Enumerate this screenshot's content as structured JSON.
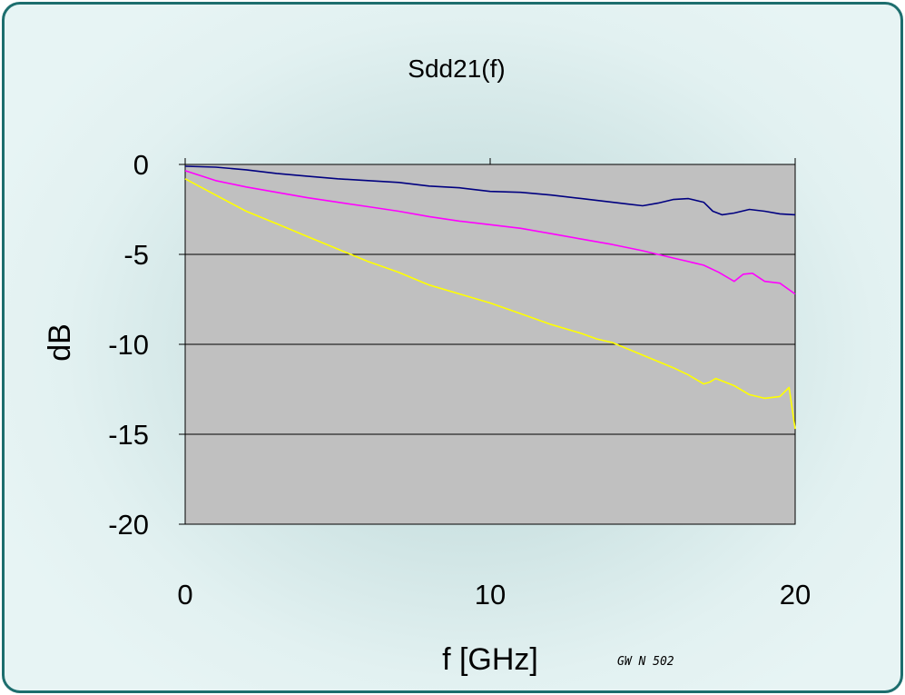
{
  "chart_data": {
    "type": "line",
    "title": "Sdd21(f)",
    "xlabel": "f [GHz]",
    "ylabel": "dB",
    "xlim": [
      0,
      20
    ],
    "ylim": [
      -20,
      0
    ],
    "xticks": [
      "0",
      "10",
      "20"
    ],
    "yticks": [
      "0",
      "-5",
      "-10",
      "-15",
      "-20"
    ],
    "grid": "horizontal",
    "plot_background": "#c0c0c0",
    "series": [
      {
        "color": "#000080",
        "x": [
          0,
          1,
          2,
          3,
          4,
          5,
          6,
          7,
          8,
          9,
          10,
          11,
          12,
          13,
          14,
          14.5,
          15,
          15.5,
          16,
          16.5,
          17,
          17.3,
          17.6,
          18,
          18.5,
          19,
          19.5,
          20
        ],
        "y": [
          -0.1,
          -0.15,
          -0.3,
          -0.5,
          -0.65,
          -0.8,
          -0.9,
          -1.0,
          -1.2,
          -1.3,
          -1.5,
          -1.55,
          -1.7,
          -1.9,
          -2.1,
          -2.2,
          -2.3,
          -2.15,
          -1.95,
          -1.9,
          -2.1,
          -2.6,
          -2.8,
          -2.7,
          -2.5,
          -2.6,
          -2.75,
          -2.8
        ]
      },
      {
        "color": "#ff00ff",
        "x": [
          0,
          1,
          2,
          3,
          4,
          5,
          6,
          7,
          8,
          9,
          10,
          11,
          12,
          13,
          14,
          15,
          16,
          16.5,
          17,
          17.5,
          18,
          18.3,
          18.6,
          19,
          19.5,
          20
        ],
        "y": [
          -0.35,
          -0.9,
          -1.25,
          -1.55,
          -1.85,
          -2.1,
          -2.35,
          -2.6,
          -2.9,
          -3.15,
          -3.35,
          -3.55,
          -3.85,
          -4.15,
          -4.45,
          -4.8,
          -5.2,
          -5.4,
          -5.6,
          -6.0,
          -6.5,
          -6.1,
          -6.05,
          -6.5,
          -6.6,
          -7.2
        ]
      },
      {
        "color": "#ffff00",
        "x": [
          0,
          1,
          2,
          3,
          4,
          5,
          6,
          7,
          8,
          9,
          10,
          11,
          12,
          13,
          13.5,
          14,
          15,
          16,
          16.5,
          17,
          17.2,
          17.4,
          18,
          18.5,
          19,
          19.5,
          19.8,
          20
        ],
        "y": [
          -0.8,
          -1.7,
          -2.6,
          -3.3,
          -4.0,
          -4.7,
          -5.4,
          -6.0,
          -6.7,
          -7.2,
          -7.7,
          -8.3,
          -8.9,
          -9.4,
          -9.7,
          -9.9,
          -10.6,
          -11.3,
          -11.7,
          -12.2,
          -12.1,
          -11.9,
          -12.3,
          -12.8,
          -13.0,
          -12.9,
          -12.4,
          -14.7
        ]
      }
    ],
    "annotation": "GW N 502"
  }
}
